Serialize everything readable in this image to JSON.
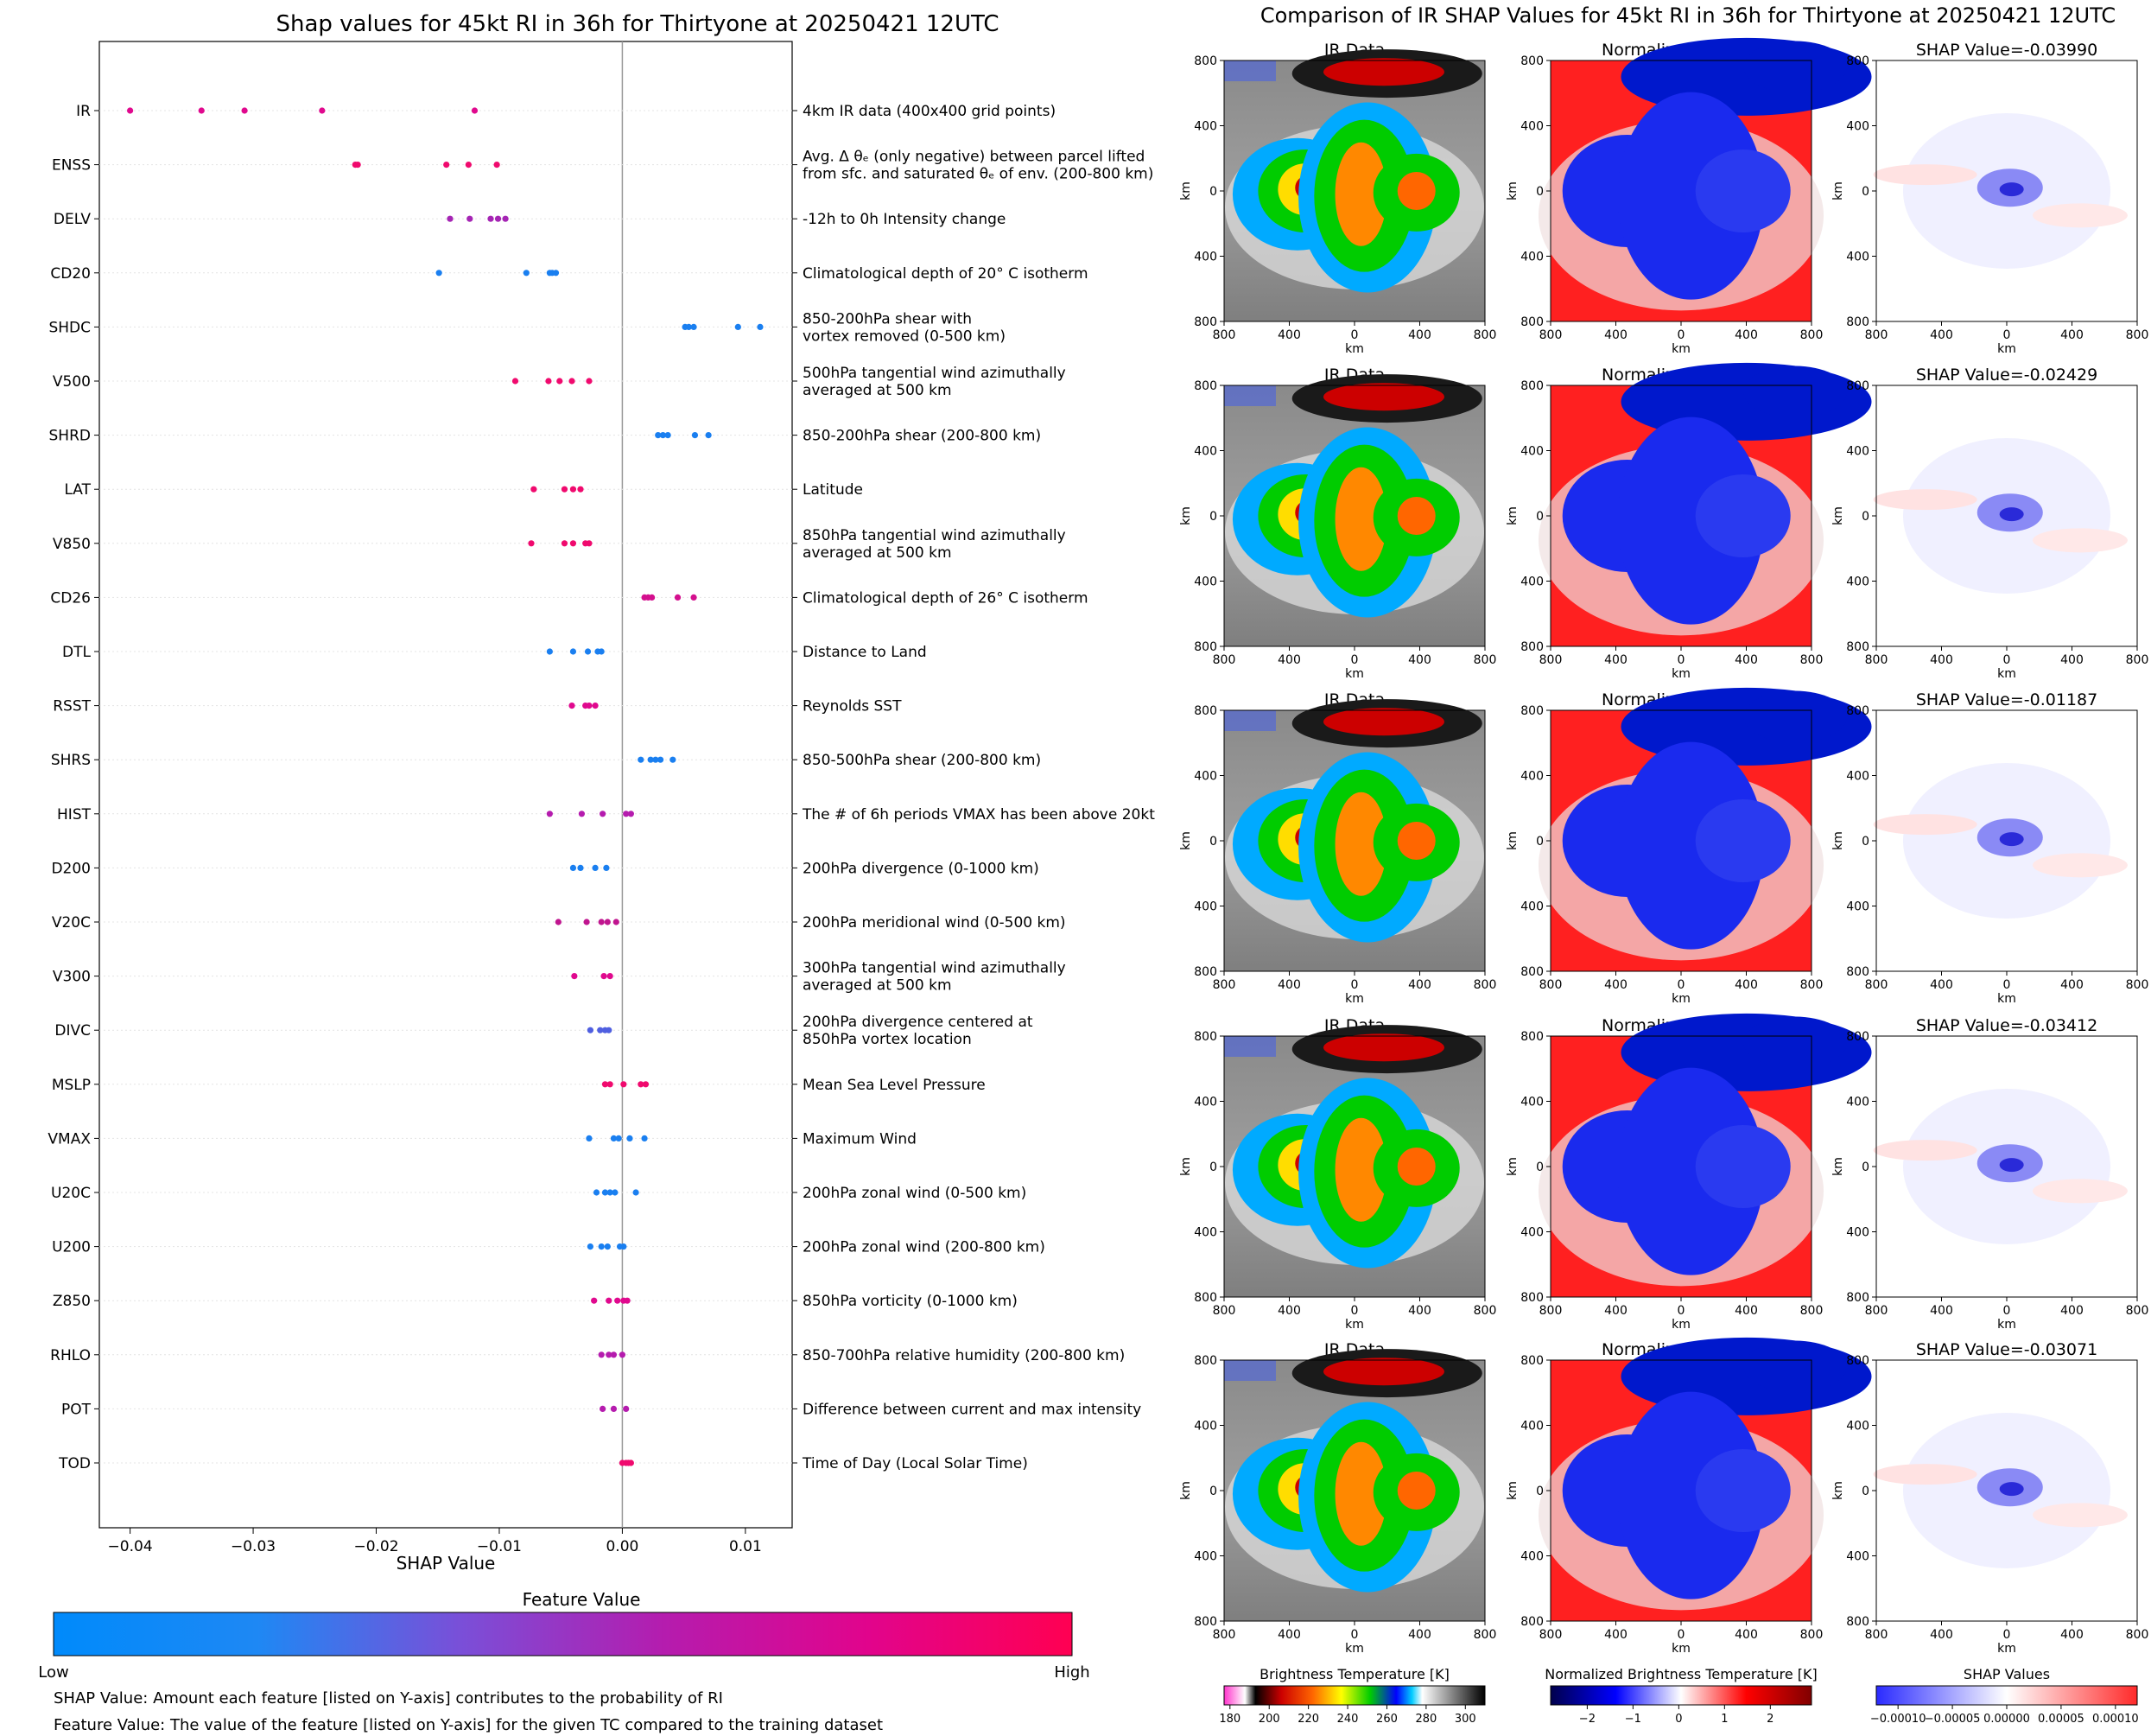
{
  "chart_data": [
    {
      "type": "scatter",
      "title": "Shap values for 45kt RI in 36h for Thirtyone at 20250421 12UTC",
      "xlabel": "SHAP Value",
      "xlim": [
        -0.0425,
        0.0138
      ],
      "x_ticks": [
        -0.04,
        -0.03,
        -0.02,
        -0.01,
        0.0,
        0.01
      ],
      "x_tick_labels": [
        "−0.04",
        "−0.03",
        "−0.02",
        "−0.01",
        "0.00",
        "0.01"
      ],
      "colorbar_label": "Feature Value",
      "colorbar_low": "Low",
      "colorbar_high": "High",
      "colorbar_colors": [
        "#008afb",
        "#1e88f4",
        "#7a4fd8",
        "#b51cae",
        "#e1048c",
        "#ff0052"
      ],
      "features": [
        {
          "name": "IR",
          "desc": [
            "4km IR data (400x400 grid points)"
          ],
          "color": "#e0098e",
          "values": [
            -0.04,
            -0.0342,
            -0.0307,
            -0.0244,
            -0.012
          ]
        },
        {
          "name": "ENSS",
          "desc": [
            "Avg. Δ θₑ (only negative) between parcel lifted",
            "from sfc. and saturated θₑ of env. (200-800 km)"
          ],
          "color": "#f00a6e",
          "values": [
            -0.0217,
            -0.0215,
            -0.0143,
            -0.0125,
            -0.0102
          ]
        },
        {
          "name": "DELV",
          "desc": [
            "-12h to 0h Intensity change"
          ],
          "color": "#a525b4",
          "values": [
            -0.014,
            -0.0124,
            -0.0107,
            -0.0101,
            -0.0095
          ]
        },
        {
          "name": "CD20",
          "desc": [
            "Climatological depth of 20° C isotherm"
          ],
          "color": "#1a7ff0",
          "values": [
            -0.0149,
            -0.0078,
            -0.0059,
            -0.0057,
            -0.0054
          ]
        },
        {
          "name": "SHDC",
          "desc": [
            "850-200hPa shear with",
            "vortex removed (0-500 km)"
          ],
          "color": "#1a7ff0",
          "values": [
            0.0051,
            0.0054,
            0.0058,
            0.0094,
            0.0112
          ]
        },
        {
          "name": "V500",
          "desc": [
            "500hPa tangential wind azimuthally",
            "averaged at 500 km"
          ],
          "color": "#f00a6e",
          "values": [
            -0.0087,
            -0.006,
            -0.0051,
            -0.0041,
            -0.0027
          ]
        },
        {
          "name": "SHRD",
          "desc": [
            "850-200hPa shear (200-800 km)"
          ],
          "color": "#1a7ff0",
          "values": [
            0.0029,
            0.0033,
            0.0037,
            0.0059,
            0.007
          ]
        },
        {
          "name": "LAT",
          "desc": [
            "Latitude"
          ],
          "color": "#f00a6e",
          "values": [
            -0.0072,
            -0.0047,
            -0.004,
            -0.0034
          ]
        },
        {
          "name": "V850",
          "desc": [
            "850hPa tangential wind azimuthally",
            "averaged at 500 km"
          ],
          "color": "#f00a6e",
          "values": [
            -0.0074,
            -0.0047,
            -0.004,
            -0.003,
            -0.0027
          ]
        },
        {
          "name": "CD26",
          "desc": [
            "Climatological depth of 26° C isotherm"
          ],
          "color": "#d4108e",
          "values": [
            0.0018,
            0.0021,
            0.0024,
            0.0045,
            0.0058
          ]
        },
        {
          "name": "DTL",
          "desc": [
            "Distance to Land"
          ],
          "color": "#1a7ff0",
          "values": [
            -0.0059,
            -0.004,
            -0.0028,
            -0.002,
            -0.0017
          ]
        },
        {
          "name": "RSST",
          "desc": [
            "Reynolds SST"
          ],
          "color": "#e0098e",
          "values": [
            -0.0041,
            -0.003,
            -0.0027,
            -0.0022
          ]
        },
        {
          "name": "SHRS",
          "desc": [
            "850-500hPa shear (200-800 km)"
          ],
          "color": "#1a7ff0",
          "values": [
            0.0015,
            0.0023,
            0.0027,
            0.0031,
            0.0041
          ]
        },
        {
          "name": "HIST",
          "desc": [
            "The # of 6h periods VMAX has been above 20kt"
          ],
          "color": "#b51cae",
          "values": [
            -0.0059,
            -0.0033,
            -0.0016,
            0.0003,
            0.0007
          ]
        },
        {
          "name": "D200",
          "desc": [
            "200hPa divergence (0-1000 km)"
          ],
          "color": "#1a7ff0",
          "values": [
            -0.004,
            -0.0034,
            -0.0022,
            -0.0013
          ]
        },
        {
          "name": "V20C",
          "desc": [
            "200hPa meridional wind (0-500 km)"
          ],
          "color": "#c0158f",
          "values": [
            -0.0052,
            -0.0029,
            -0.0017,
            -0.0012,
            -0.0005
          ]
        },
        {
          "name": "V300",
          "desc": [
            "300hPa tangential wind azimuthally",
            "averaged at 500 km"
          ],
          "color": "#e0098e",
          "values": [
            -0.0039,
            -0.0015,
            -0.001
          ]
        },
        {
          "name": "DIVC",
          "desc": [
            "200hPa divergence centered at",
            "850hPa vortex location"
          ],
          "color": "#4f5fe0",
          "values": [
            -0.0026,
            -0.0018,
            -0.0014,
            -0.0011
          ]
        },
        {
          "name": "MSLP",
          "desc": [
            "Mean Sea Level Pressure"
          ],
          "color": "#f00a6e",
          "values": [
            -0.0014,
            -0.001,
            0.0001,
            0.0015,
            0.0019
          ]
        },
        {
          "name": "VMAX",
          "desc": [
            "Maximum Wind"
          ],
          "color": "#1a7ff0",
          "values": [
            -0.0027,
            -0.0007,
            -0.0003,
            0.0006,
            0.0018
          ]
        },
        {
          "name": "U20C",
          "desc": [
            "200hPa zonal wind (0-500 km)"
          ],
          "color": "#1a7ff0",
          "values": [
            -0.0021,
            -0.0014,
            -0.001,
            -0.0006,
            0.0011
          ]
        },
        {
          "name": "U200",
          "desc": [
            "200hPa zonal wind (200-800 km)"
          ],
          "color": "#1a7ff0",
          "values": [
            -0.0026,
            -0.0017,
            -0.0012,
            -0.0002,
            0.0001
          ]
        },
        {
          "name": "Z850",
          "desc": [
            "850hPa vorticity (0-1000 km)"
          ],
          "color": "#e0098e",
          "values": [
            -0.0023,
            -0.0011,
            -0.0004,
            0.0001,
            0.0004
          ]
        },
        {
          "name": "RHLO",
          "desc": [
            "850-700hPa relative humidity (200-800 km)"
          ],
          "color": "#b51cae",
          "values": [
            -0.0017,
            -0.0011,
            -0.0007,
            0.0
          ]
        },
        {
          "name": "POT",
          "desc": [
            "Difference between current and max intensity"
          ],
          "color": "#b51cae",
          "values": [
            -0.0016,
            -0.0007,
            0.0003
          ]
        },
        {
          "name": "TOD",
          "desc": [
            "Time of Day (Local Solar Time)"
          ],
          "color": "#f00a6e",
          "values": [
            0.0,
            0.0003,
            0.0005,
            0.0007
          ]
        }
      ]
    },
    {
      "type": "heatmap",
      "title": "Comparison of IR SHAP Values for 45kt RI in 36h for Thirtyone at 20250421 12UTC",
      "panel_titles": [
        "IR Data",
        "Normalized IR Data"
      ],
      "shap_titles": [
        "SHAP Value=-0.03990",
        "SHAP Value=-0.02429",
        "SHAP Value=-0.01187",
        "SHAP Value=-0.03412",
        "SHAP Value=-0.03071"
      ],
      "axis_unit": "km",
      "axis_ticks": [
        "800",
        "400",
        "0",
        "400",
        "800"
      ],
      "colorbars": [
        {
          "label": "Brightness Temperature [K]",
          "ticks": [
            "180",
            "200",
            "220",
            "240",
            "260",
            "280",
            "300"
          ],
          "range": [
            177,
            310
          ]
        },
        {
          "label": "Normalized Brightness Temperature [K]",
          "ticks": [
            "−2",
            "−1",
            "0",
            "1",
            "2"
          ],
          "range": [
            -2.8,
            2.9
          ]
        },
        {
          "label": "SHAP Values",
          "ticks": [
            "−0.00010",
            "−0.00005",
            "0.00000",
            "0.00005",
            "0.00010"
          ],
          "range": [
            -0.00012,
            0.00012
          ]
        }
      ]
    }
  ],
  "notes": [
    "SHAP Value: Amount each feature [listed on Y-axis] contributes to the probability of RI",
    "Feature Value: The value of the feature [listed on Y-axis] for the given TC compared to the training dataset"
  ]
}
